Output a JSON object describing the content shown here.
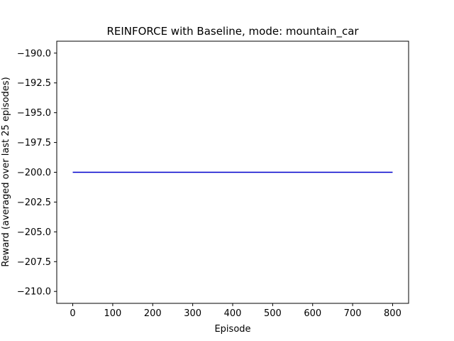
{
  "chart_data": {
    "type": "line",
    "title": "REINFORCE with Baseline, mode: mountain_car",
    "xlabel": "Episode",
    "ylabel": "Reward (averaged over last 25 episodes)",
    "xlim": [
      -40,
      840
    ],
    "ylim": [
      -211,
      -189
    ],
    "xticks": [
      0,
      100,
      200,
      300,
      400,
      500,
      600,
      700,
      800
    ],
    "yticks": [
      -190.0,
      -192.5,
      -195.0,
      -197.5,
      -200.0,
      -202.5,
      -205.0,
      -207.5,
      -210.0
    ],
    "xtick_labels": [
      "0",
      "100",
      "200",
      "300",
      "400",
      "500",
      "600",
      "700",
      "800"
    ],
    "ytick_labels": [
      "−190.0",
      "−192.5",
      "−195.0",
      "−197.5",
      "−200.0",
      "−202.5",
      "−205.0",
      "−207.5",
      "−210.0"
    ],
    "grid": false,
    "series": [
      {
        "color": "#0000cc",
        "x": [
          0,
          800
        ],
        "y": [
          -200.0,
          -200.0
        ]
      }
    ]
  }
}
